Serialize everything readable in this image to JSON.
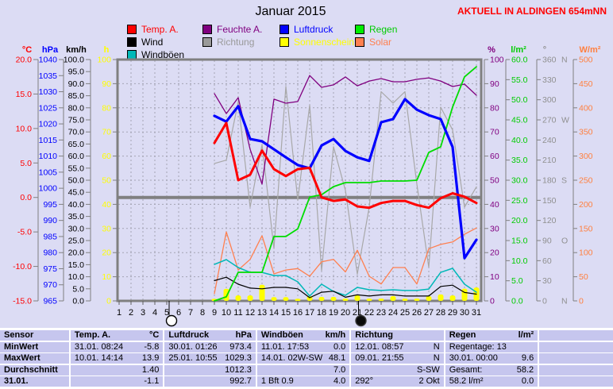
{
  "header": {
    "title": "Januar 2015",
    "station": "AKTUELL IN ALDINGEN 654mNN"
  },
  "legend": {
    "rows": [
      [
        {
          "label": "Temp. A.",
          "swatch": "#ff0000",
          "text_color": "#ff0000",
          "slug": "temp-a"
        },
        {
          "label": "Feuchte A.",
          "swatch": "#800080",
          "text_color": "#800080",
          "slug": "feuchte-a"
        },
        {
          "label": "Luftdruck",
          "swatch": "#0000ff",
          "text_color": "#0000ff",
          "slug": "luftdruck"
        },
        {
          "label": "Regen",
          "swatch": "#00ee00",
          "text_color": "#00cc00",
          "slug": "regen"
        }
      ],
      [
        {
          "label": "Wind",
          "swatch": "#000000",
          "text_color": "#000000",
          "slug": "wind"
        },
        {
          "label": "Richtung",
          "swatch": "#9a9a9a",
          "text_color": "#9a9a9a",
          "slug": "richtung"
        },
        {
          "label": "Sonnenschein",
          "swatch": "#ffff00",
          "text_color": "#ffff00",
          "slug": "sonnenschein"
        },
        {
          "label": "Solar",
          "swatch": "#ff8050",
          "text_color": "#ff8050",
          "slug": "solar"
        }
      ],
      [
        {
          "label": "Windböen",
          "swatch": "#00b8b8",
          "text_color": "#000000",
          "slug": "windboeen"
        }
      ]
    ]
  },
  "chart_data": {
    "type": "line",
    "title": "Januar 2015",
    "x_label": "Tag",
    "x_days": [
      1,
      2,
      3,
      4,
      5,
      6,
      7,
      8,
      9,
      10,
      11,
      12,
      13,
      14,
      15,
      16,
      17,
      18,
      19,
      20,
      21,
      22,
      23,
      24,
      25,
      26,
      27,
      28,
      29,
      30,
      31
    ],
    "start_day": 9,
    "grid": true,
    "axes": {
      "celsius": {
        "unit": "°C",
        "color": "#ff0000",
        "min": -15,
        "max": 20,
        "labels": [
          "20.0",
          "15.0",
          "10.0",
          "5.0",
          "0.0",
          "-5.0",
          "-10.0",
          "-15.0"
        ]
      },
      "hpa": {
        "unit": "hPa",
        "color": "#0000ff",
        "min": 965,
        "max": 1040,
        "labels": [
          "1040",
          "1035",
          "1030",
          "1025",
          "1020",
          "1015",
          "1010",
          "1005",
          "1000",
          "995",
          "990",
          "985",
          "980",
          "975",
          "970",
          "965"
        ]
      },
      "kmh": {
        "unit": "km/h",
        "color": "#000000",
        "min": 0,
        "max": 100,
        "labels": [
          "100.0",
          "95.0",
          "90.0",
          "85.0",
          "80.0",
          "75.0",
          "70.0",
          "65.0",
          "60.0",
          "55.0",
          "50.0",
          "45.0",
          "40.0",
          "35.0",
          "30.0",
          "25.0",
          "20.0",
          "15.0",
          "10.0",
          "5.0",
          "0.0"
        ]
      },
      "h": {
        "unit": "h",
        "color": "#ffff00",
        "min": 0,
        "max": 100,
        "labels": [
          "100",
          "90",
          "80",
          "70",
          "60",
          "50",
          "40",
          "30",
          "20",
          "10",
          "0"
        ]
      },
      "percent": {
        "unit": "%",
        "color": "#800080",
        "min": 0,
        "max": 100,
        "labels": [
          "100",
          "90",
          "80",
          "70",
          "60",
          "50",
          "40",
          "30",
          "20",
          "10",
          "0"
        ]
      },
      "lm2": {
        "unit": "l/m²",
        "color": "#00cc00",
        "min": 0,
        "max": 60,
        "labels": [
          "60.0",
          "55.0",
          "50.0",
          "45.0",
          "40.0",
          "35.0",
          "30.0",
          "25.0",
          "20.0",
          "15.0",
          "10.0",
          "5.0",
          "0.0"
        ]
      },
      "degrees": {
        "unit": "°",
        "color": "#909090",
        "min": 0,
        "max": 360,
        "labels": [
          "360 N",
          "330",
          "300",
          "270 W",
          "240",
          "210",
          "180 S",
          "150",
          "120",
          "90 O",
          "60",
          "30",
          "0 N"
        ]
      },
      "wm2": {
        "unit": "W/m²",
        "color": "#ff8040",
        "min": 0,
        "max": 500,
        "labels": [
          "500",
          "450",
          "400",
          "350",
          "300",
          "250",
          "200",
          "150",
          "100",
          "50",
          "0"
        ]
      }
    },
    "zero_line": {
      "axis": "celsius",
      "value": 0
    },
    "series": [
      {
        "name": "Richtung",
        "slug": "richtung",
        "axis": "degrees",
        "color": "#a8a8a8",
        "width": 1.2,
        "kind": "line",
        "values": [
          205,
          210,
          297,
          140,
          233,
          78,
          320,
          150,
          292,
          45,
          230,
          165,
          40,
          140,
          312,
          295,
          312,
          174,
          50,
          289,
          255,
          140,
          170
        ]
      },
      {
        "name": "Feuchte A.",
        "slug": "feuchte-a",
        "axis": "percent",
        "color": "#800080",
        "width": 1.3,
        "kind": "line",
        "values": [
          85.9,
          77.6,
          84.2,
          62.8,
          48.4,
          83.6,
          81.9,
          82.6,
          93.4,
          88.5,
          89.5,
          92.8,
          89.1,
          91.1,
          92.1,
          90.8,
          90.8,
          91.8,
          92.4,
          91.1,
          88.8,
          89.8,
          85.2
        ]
      },
      {
        "name": "Solar",
        "slug": "solar",
        "axis": "wm2",
        "color": "#ff8050",
        "width": 1.3,
        "kind": "line",
        "values": [
          15,
          143,
          64,
          86,
          135,
          56,
          64,
          67,
          51,
          81,
          86,
          60,
          105,
          51,
          35,
          69,
          69,
          35,
          108,
          117,
          122,
          138,
          151
        ]
      },
      {
        "name": "Windböen",
        "slug": "windboeen",
        "axis": "kmh",
        "color": "#00b8b8",
        "width": 1.5,
        "kind": "line",
        "values": [
          15.1,
          17.1,
          13.8,
          11.8,
          11.8,
          10.5,
          10.5,
          7.9,
          2.0,
          6.9,
          3.9,
          2.3,
          5.6,
          4.6,
          4.3,
          4.6,
          4.3,
          4.3,
          4.9,
          11.8,
          13.5,
          6.9,
          3.6
        ]
      },
      {
        "name": "Wind",
        "slug": "wind",
        "axis": "kmh",
        "color": "#000000",
        "width": 1.2,
        "kind": "line",
        "values": [
          8.4,
          9.8,
          6.9,
          5.3,
          5.0,
          5.6,
          5.6,
          5.0,
          1.3,
          3.6,
          4.0,
          1.5,
          2.5,
          2.0,
          2.5,
          2.5,
          2.0,
          2.0,
          2.0,
          6.0,
          6.5,
          3.5,
          2.8
        ]
      },
      {
        "name": "Regen",
        "slug": "regen",
        "axis": "lm2",
        "color": "#00dd00",
        "width": 1.8,
        "kind": "line",
        "values": [
          0,
          1.0,
          7.1,
          7.1,
          7.1,
          16.0,
          16.0,
          17.9,
          25.8,
          26.4,
          28.4,
          29.4,
          29.4,
          29.4,
          29.8,
          29.8,
          29.8,
          30.0,
          36.9,
          38.3,
          48.2,
          55.7,
          58.2
        ]
      },
      {
        "name": "Luftdruck",
        "slug": "luftdruck",
        "axis": "hpa",
        "color": "#0000ff",
        "width": 3.2,
        "kind": "line",
        "values": [
          1022.5,
          1020.7,
          1025.5,
          1015.3,
          1014.6,
          1012.1,
          1009.6,
          1007.2,
          1006.2,
          1013.3,
          1015.3,
          1011.6,
          1009.6,
          1008.5,
          1020.5,
          1021.5,
          1027.7,
          1024.4,
          1022.7,
          1021.5,
          1012.8,
          978.3,
          984.0
        ]
      },
      {
        "name": "Temp. A.",
        "slug": "temp-a",
        "axis": "celsius",
        "color": "#ff0000",
        "width": 3,
        "kind": "line",
        "values": [
          7.9,
          10.8,
          2.5,
          3.3,
          6.8,
          4.1,
          3.1,
          4.1,
          4.3,
          0.0,
          -0.5,
          -0.3,
          -1.3,
          -1.5,
          -0.8,
          -0.5,
          -0.5,
          -1.1,
          -1.5,
          -0.1,
          0.6,
          0.1,
          -0.8
        ]
      },
      {
        "name": "Sonnenschein",
        "slug": "sonnenschein",
        "axis": "h",
        "color": "#ffff00",
        "kind": "bar",
        "values": [
          0.2,
          4.3,
          1.6,
          1.6,
          6.0,
          0.9,
          0.9,
          0.2,
          1.3,
          1.0,
          1.0,
          0.3,
          1.6,
          0.3,
          0.3,
          1.3,
          0.3,
          0.3,
          1.3,
          2.0,
          1.6,
          4.4,
          4.9
        ]
      }
    ],
    "moons": [
      {
        "type": "full-moon",
        "day": 5.2
      },
      {
        "type": "new-moon",
        "day": 21.1
      }
    ]
  },
  "table": {
    "columns": [
      {
        "header": "Sensor",
        "unit": ""
      },
      {
        "header": "Temp. A.",
        "unit": "°C"
      },
      {
        "header": "Luftdruck",
        "unit": "hPa"
      },
      {
        "header": "Windböen",
        "unit": "km/h"
      },
      {
        "header": "Richtung",
        "unit": ""
      },
      {
        "header": "Regen",
        "unit": "l/m²"
      },
      {
        "header": "",
        "unit": ""
      }
    ],
    "rows": [
      {
        "label": "MinWert",
        "cells": [
          [
            "31.01. 08:24",
            "-5.8"
          ],
          [
            "30.01. 01:26",
            "973.4"
          ],
          [
            "11.01. 17:53",
            "0.0"
          ],
          [
            "12.01. 08:57",
            "N"
          ],
          [
            "Regentage: 13",
            ""
          ],
          [
            "",
            ""
          ]
        ]
      },
      {
        "label": "MaxWert",
        "cells": [
          [
            "10.01. 14:14",
            "13.9"
          ],
          [
            "25.01. 10:55",
            "1029.3"
          ],
          [
            "14.01. 02W-SW",
            "48.1"
          ],
          [
            "09.01. 21:55",
            "N"
          ],
          [
            "30.01. 00:00",
            "9.6"
          ],
          [
            "",
            ""
          ]
        ]
      },
      {
        "label": "Durchschnitt",
        "cells": [
          [
            "",
            "1.40"
          ],
          [
            "",
            "1012.3"
          ],
          [
            "",
            "7.0"
          ],
          [
            "",
            "S-SW"
          ],
          [
            "Gesamt:",
            "58.2"
          ],
          [
            "",
            ""
          ]
        ]
      },
      {
        "label": "31.01.",
        "cells": [
          [
            "",
            "-1.1"
          ],
          [
            "",
            "992.7"
          ],
          [
            "1 Bft 0.9",
            "4.0"
          ],
          [
            "292°",
            "2 Okt"
          ],
          [
            "58.2 l/m²",
            "0.0"
          ],
          [
            "",
            ""
          ]
        ]
      }
    ]
  }
}
